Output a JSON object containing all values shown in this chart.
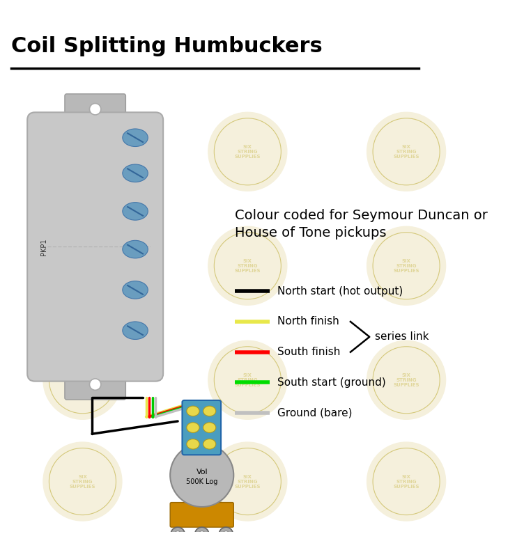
{
  "title": "Coil Splitting Humbuckers",
  "bg_color": "#ffffff",
  "title_fontsize": 22,
  "pickup": {
    "body_color": "#c8c8c8",
    "mount_color": "#b8b8b8",
    "screw_color": "#6a9dbf",
    "label": "PKP1"
  },
  "legend_title": "Colour coded for Seymour Duncan or\nHouse of Tone pickups",
  "legend_items": [
    {
      "color": "#000000",
      "label": "North start (hot output)"
    },
    {
      "color": "#e8e84a",
      "label": "North finish"
    },
    {
      "color": "#ff0000",
      "label": "South finish"
    },
    {
      "color": "#00dd00",
      "label": "South start (ground)"
    },
    {
      "color": "#c0c0c0",
      "label": "Ground (bare)"
    }
  ],
  "series_link_label": "series link",
  "wire_colors": [
    "#000000",
    "#e8e84a",
    "#ff0000",
    "#00cc00",
    "#c0c0c0"
  ],
  "pot_color": "#cc8800",
  "pot_body_color": "#b8b8b8",
  "connector_color": "#4a9dbf",
  "connector_screw_color": "#e8d84a",
  "lug_color": "#aaaaaa"
}
